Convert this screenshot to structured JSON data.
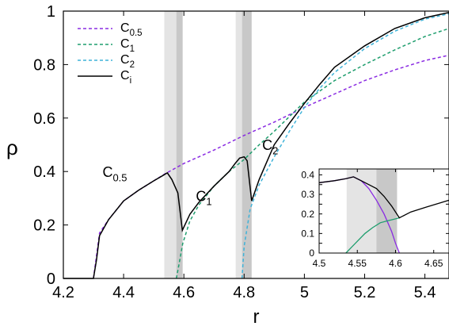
{
  "chart_data": [
    {
      "type": "line",
      "xlabel": "r",
      "ylabel": "ρ",
      "xlim": [
        4.2,
        5.48
      ],
      "ylim": [
        0,
        1
      ],
      "xticks": [
        "4.2",
        "4.4",
        "4.6",
        "4.8",
        "5",
        "5.2",
        "5.4"
      ],
      "yticks": [
        "0",
        "0.2",
        "0.4",
        "0.6",
        "0.8",
        "1"
      ],
      "legend_position": "top-left",
      "shaded_bands": [
        {
          "x": [
            4.535,
            4.575
          ],
          "shade": "light",
          "color": "#e4e4e4"
        },
        {
          "x": [
            4.575,
            4.596
          ],
          "shade": "dark",
          "color": "#c8c8c8"
        },
        {
          "x": [
            4.772,
            4.793
          ],
          "shade": "light",
          "color": "#e4e4e4"
        },
        {
          "x": [
            4.793,
            4.825
          ],
          "shade": "dark",
          "color": "#c8c8c8"
        }
      ],
      "annotations": [
        {
          "label": "C",
          "sub": "0.5",
          "x": 4.33,
          "y": 0.38
        },
        {
          "label": "C",
          "sub": "1",
          "x": 4.64,
          "y": 0.29
        },
        {
          "label": "C",
          "sub": "2",
          "x": 4.86,
          "y": 0.48
        }
      ],
      "series": [
        {
          "name": "C",
          "sub": "0.5",
          "style": "dashed",
          "color": "#8a2be2",
          "x": [
            4.3,
            4.32,
            4.35,
            4.4,
            4.45,
            4.5,
            4.535,
            4.6,
            4.7,
            4.8,
            4.9,
            5.0,
            5.1,
            5.2,
            5.3,
            5.4,
            5.48
          ],
          "y": [
            0.0,
            0.17,
            0.22,
            0.29,
            0.33,
            0.365,
            0.39,
            0.43,
            0.48,
            0.535,
            0.585,
            0.64,
            0.69,
            0.74,
            0.78,
            0.815,
            0.835
          ]
        },
        {
          "name": "C",
          "sub": "1",
          "style": "dashed",
          "color": "#1f9e6e",
          "x": [
            4.575,
            4.585,
            4.596,
            4.62,
            4.65,
            4.7,
            4.75,
            4.8,
            4.85,
            4.9,
            5.0,
            5.1,
            5.2,
            5.3,
            5.4,
            5.48
          ],
          "y": [
            0.0,
            0.06,
            0.13,
            0.215,
            0.275,
            0.345,
            0.4,
            0.445,
            0.5,
            0.55,
            0.66,
            0.74,
            0.8,
            0.855,
            0.905,
            0.935
          ]
        },
        {
          "name": "C",
          "sub": "2",
          "style": "dashed",
          "color": "#3fb3d9",
          "x": [
            4.793,
            4.8,
            4.82,
            4.85,
            4.9,
            4.95,
            5.0,
            5.05,
            5.1,
            5.2,
            5.3,
            5.4,
            5.48
          ],
          "y": [
            0.0,
            0.12,
            0.26,
            0.35,
            0.455,
            0.55,
            0.64,
            0.71,
            0.77,
            0.86,
            0.925,
            0.97,
            0.99
          ]
        },
        {
          "name": "C",
          "sub": "i",
          "style": "solid",
          "color": "#000000",
          "x": [
            4.2,
            4.3,
            4.31,
            4.32,
            4.35,
            4.4,
            4.45,
            4.5,
            4.53,
            4.545,
            4.56,
            4.58,
            4.595,
            4.62,
            4.65,
            4.7,
            4.75,
            4.77,
            4.785,
            4.8,
            4.81,
            4.825,
            4.85,
            4.9,
            4.95,
            5.0,
            5.05,
            5.1,
            5.2,
            5.3,
            5.4,
            5.48
          ],
          "y": [
            0.0,
            0.0,
            0.07,
            0.16,
            0.22,
            0.29,
            0.33,
            0.365,
            0.385,
            0.395,
            0.37,
            0.32,
            0.18,
            0.24,
            0.285,
            0.345,
            0.4,
            0.43,
            0.45,
            0.455,
            0.44,
            0.29,
            0.37,
            0.5,
            0.58,
            0.655,
            0.725,
            0.79,
            0.87,
            0.935,
            0.975,
            0.995
          ]
        }
      ]
    },
    {
      "type": "line",
      "title": "",
      "xlim": [
        4.5,
        4.67
      ],
      "ylim": [
        0,
        0.43
      ],
      "xticks": [
        "4.5",
        "4.55",
        "4.6",
        "4.65"
      ],
      "yticks": [
        "0",
        "0.05",
        "0.1",
        "0.15",
        "0.2",
        "0.25",
        "0.3",
        "0.35",
        "0.4"
      ],
      "shaded_bands": [
        {
          "x": [
            4.536,
            4.575
          ],
          "shade": "light",
          "color": "#e4e4e4"
        },
        {
          "x": [
            4.575,
            4.602
          ],
          "shade": "dark",
          "color": "#c8c8c8"
        }
      ],
      "series": [
        {
          "style": "solid",
          "color": "#8a2be2",
          "x": [
            4.5,
            4.52,
            4.535,
            4.545,
            4.555,
            4.565,
            4.575,
            4.585,
            4.595,
            4.6,
            4.605
          ],
          "y": [
            0.36,
            0.37,
            0.38,
            0.39,
            0.37,
            0.33,
            0.27,
            0.2,
            0.11,
            0.05,
            0.0
          ]
        },
        {
          "style": "solid",
          "color": "#1f9e6e",
          "x": [
            4.535,
            4.54,
            4.55,
            4.56,
            4.57,
            4.58,
            4.59,
            4.6,
            4.605
          ],
          "y": [
            0.0,
            0.02,
            0.06,
            0.1,
            0.13,
            0.155,
            0.165,
            0.175,
            0.18
          ]
        },
        {
          "style": "solid",
          "color": "#000000",
          "x": [
            4.5,
            4.52,
            4.535,
            4.545,
            4.555,
            4.565,
            4.575,
            4.585,
            4.595,
            4.605,
            4.62,
            4.64,
            4.67
          ],
          "y": [
            0.36,
            0.37,
            0.38,
            0.39,
            0.37,
            0.35,
            0.33,
            0.29,
            0.24,
            0.18,
            0.21,
            0.235,
            0.27
          ]
        }
      ]
    }
  ]
}
